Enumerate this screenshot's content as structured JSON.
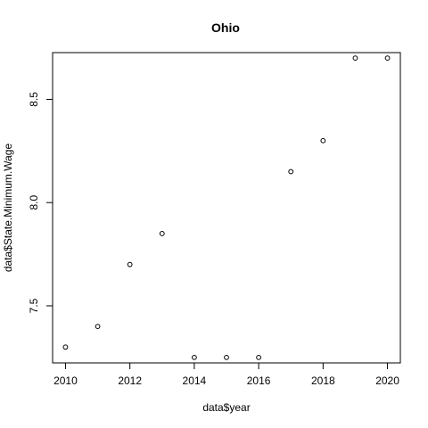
{
  "chart_data": {
    "type": "scatter",
    "title": "Ohio",
    "xlabel": "data$year",
    "ylabel": "data$State.Minimum.Wage",
    "xlim": [
      2009.6,
      2020.4
    ],
    "ylim": [
      7.2235,
      8.7265
    ],
    "x_ticks": [
      2010,
      2012,
      2014,
      2016,
      2018,
      2020
    ],
    "y_ticks": [
      7.5,
      8.0,
      8.5
    ],
    "x_tick_labels": [
      "2010",
      "2012",
      "2014",
      "2016",
      "2018",
      "2020"
    ],
    "y_tick_labels": [
      "7.5",
      "8.0",
      "8.5"
    ],
    "grid": false,
    "legend": "none",
    "x": [
      2010,
      2011,
      2012,
      2013,
      2014,
      2015,
      2016,
      2017,
      2018,
      2019,
      2020
    ],
    "y": [
      7.3,
      7.4,
      7.7,
      7.85,
      7.25,
      7.25,
      7.25,
      8.15,
      8.3,
      8.7,
      8.7
    ]
  }
}
